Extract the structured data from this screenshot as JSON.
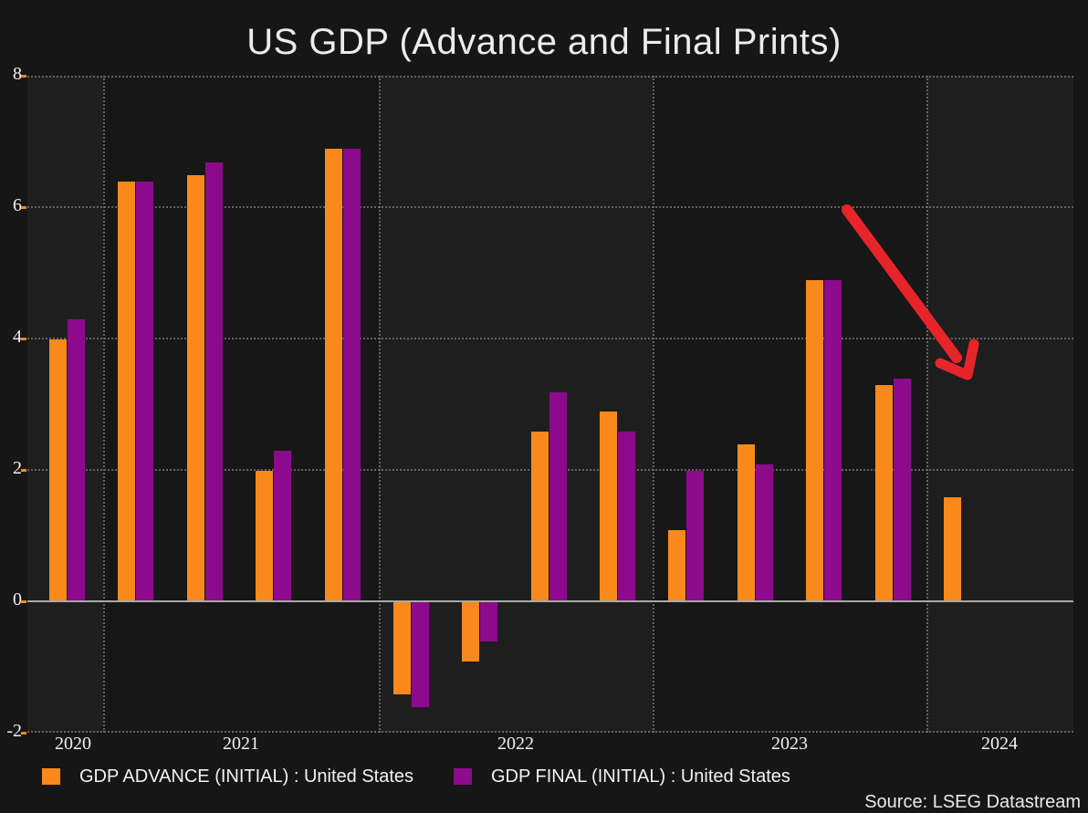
{
  "title": "US GDP (Advance and Final Prints)",
  "source": "Source: LSEG Datastream",
  "legend": [
    {
      "label": "GDP ADVANCE (INITIAL) : United States",
      "color": "#f9891b"
    },
    {
      "label": "GDP FINAL (INITIAL) : United States",
      "color": "#8d0a8d"
    }
  ],
  "colors": {
    "background": "#161616",
    "panel_light": "#1e1e1e",
    "panel_dark": "#171717",
    "advance": "#f9891b",
    "final": "#8d0a8d",
    "arrow": "#e8242b",
    "zero_line": "#a9a9a9",
    "grid": "#6f6f6f",
    "text": "#ececec",
    "tick_mark": "#f9891b"
  },
  "chart_data": {
    "type": "bar",
    "title": "US GDP (Advance and Final Prints)",
    "x": [
      "2020 Q4",
      "2021 Q1",
      "2021 Q2",
      "2021 Q3",
      "2021 Q4",
      "2022 Q1",
      "2022 Q2",
      "2022 Q3",
      "2022 Q4",
      "2023 Q1",
      "2023 Q2",
      "2023 Q3",
      "2023 Q4",
      "2024 Q1"
    ],
    "series": [
      {
        "name": "GDP ADVANCE (INITIAL) : United States",
        "color": "#f9891b",
        "values": [
          4.0,
          6.4,
          6.5,
          2.0,
          6.9,
          -1.4,
          -0.9,
          2.6,
          2.9,
          1.1,
          2.4,
          4.9,
          3.3,
          1.6
        ]
      },
      {
        "name": "GDP FINAL (INITIAL) : United States",
        "color": "#8d0a8d",
        "values": [
          4.3,
          6.4,
          6.7,
          2.3,
          6.9,
          -1.6,
          -0.6,
          3.2,
          2.6,
          2.0,
          2.1,
          4.9,
          3.4,
          null
        ]
      }
    ],
    "ylim": [
      -2,
      8
    ],
    "yticks": [
      8,
      6,
      4,
      2,
      0,
      -2
    ],
    "xlabel": "",
    "ylabel": "",
    "x_year_labels": [
      "2020",
      "2021",
      "2022",
      "2023",
      "2024"
    ],
    "grid": "dotted",
    "legend_position": "bottom",
    "annotation": "red arrow pointing down-right toward 2024"
  }
}
